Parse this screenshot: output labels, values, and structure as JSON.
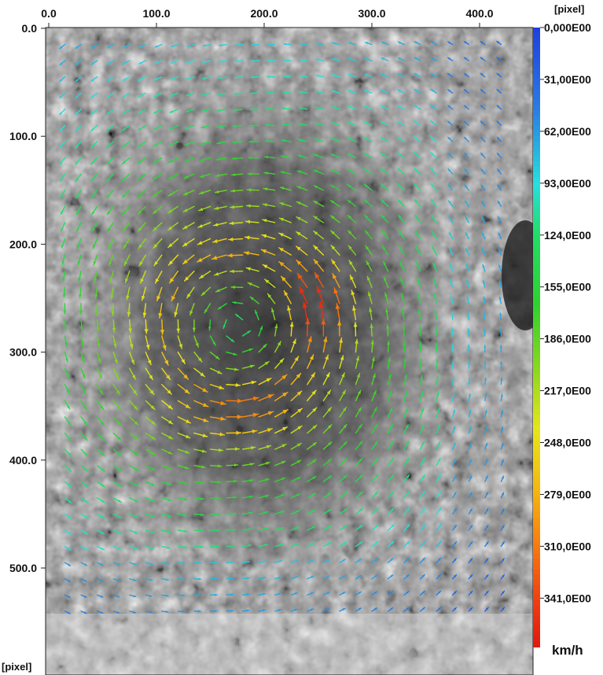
{
  "chart_data": {
    "type": "vector-field",
    "title": "",
    "xlabel": "[pixel]",
    "ylabel": "[pixel]",
    "x_axis": {
      "unit": "[pixel]",
      "ticks": [
        0,
        100,
        200,
        300,
        400
      ],
      "tick_labels": [
        "0.0",
        "100.0",
        "200.0",
        "300.0",
        "400.0"
      ],
      "range": [
        0,
        450
      ],
      "position": "top"
    },
    "y_axis": {
      "unit": "[pixel]",
      "ticks": [
        0,
        100,
        200,
        300,
        400,
        500
      ],
      "tick_labels": [
        "0.0",
        "100.0",
        "200.0",
        "300.0",
        "400.0",
        "500.0"
      ],
      "range": [
        0,
        600
      ],
      "inverted": true
    },
    "colorbar": {
      "unit": "km/h",
      "range": [
        0,
        370
      ],
      "tick_values": [
        0,
        31,
        62,
        93,
        124,
        155,
        186,
        217,
        248,
        279,
        310,
        341
      ],
      "tick_labels": [
        "0,000E00",
        "31,00E00",
        "62,00E00",
        "93,00E00",
        "124,0E00",
        "155,0E00",
        "186,0E00",
        "217,0E00",
        "248,0E00",
        "279,0E00",
        "310,0E00",
        "341,0E00"
      ],
      "colormap": [
        {
          "v": 0,
          "color": "#1f3fe0"
        },
        {
          "v": 50,
          "color": "#2a7ee6"
        },
        {
          "v": 93,
          "color": "#25e0e0"
        },
        {
          "v": 124,
          "color": "#22dd66"
        },
        {
          "v": 165,
          "color": "#2ed22e"
        },
        {
          "v": 205,
          "color": "#8ed81c"
        },
        {
          "v": 240,
          "color": "#e6e61a"
        },
        {
          "v": 279,
          "color": "#f6b20e"
        },
        {
          "v": 310,
          "color": "#f77a10"
        },
        {
          "v": 345,
          "color": "#f03a10"
        },
        {
          "v": 370,
          "color": "#e01a10"
        }
      ]
    },
    "vortex": {
      "center_x": 175,
      "center_y": 275,
      "rotation": "counterclockwise",
      "peak_speed": 355,
      "peak_location": [
        255,
        260
      ],
      "core_radius": 65
    },
    "grid": {
      "spacing": 15,
      "x_start": 15,
      "x_end": 420,
      "y_start": 15,
      "y_end": 540
    },
    "background": "grayscale image"
  }
}
